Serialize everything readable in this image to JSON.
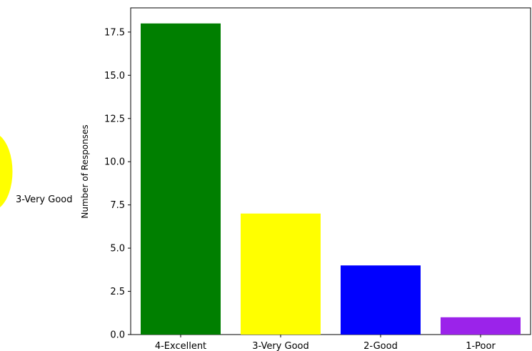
{
  "chart_data": {
    "type": "bar",
    "title": "",
    "xlabel": "",
    "ylabel": "Number of Responses",
    "categories": [
      "4-Excellent",
      "3-Very Good",
      "2-Good",
      "1-Poor"
    ],
    "values": [
      18,
      7,
      4,
      1
    ],
    "colors": [
      "#007f00",
      "#ffff00",
      "#0000ff",
      "#9b23ea"
    ],
    "ylim": [
      0,
      18.9
    ],
    "yticks": [
      0.0,
      2.5,
      5.0,
      7.5,
      10.0,
      12.5,
      15.0,
      17.5
    ],
    "ytick_labels": [
      "0.0",
      "2.5",
      "5.0",
      "7.5",
      "10.0",
      "12.5",
      "15.0",
      "17.5"
    ],
    "grid": false,
    "legend": "none"
  },
  "background_fragment": {
    "label": "3-Very Good",
    "wedge_color": "#ffff00"
  }
}
